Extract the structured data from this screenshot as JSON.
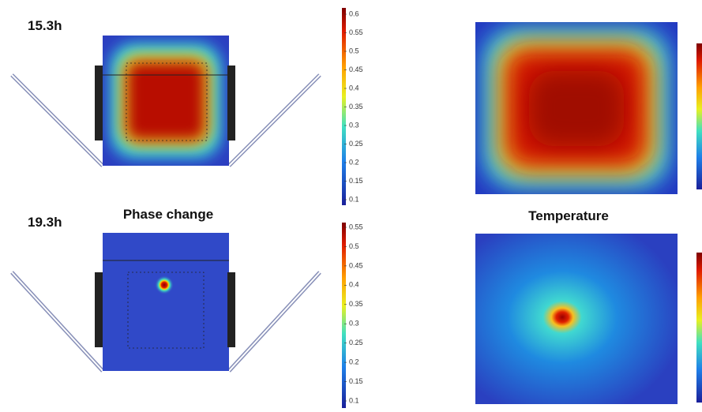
{
  "panels": {
    "top_time": "15.3h",
    "bottom_time": "19.3h",
    "left_title": "Phase change",
    "right_title": "Temperature"
  },
  "colorbars": {
    "top": [
      0.6,
      0.55,
      0.5,
      0.45,
      0.4,
      0.35,
      0.3,
      0.25,
      0.2,
      0.15,
      0.1
    ],
    "bottom": [
      0.55,
      0.5,
      0.45,
      0.4,
      0.35,
      0.3,
      0.25,
      0.2,
      0.15,
      0.1
    ]
  }
}
